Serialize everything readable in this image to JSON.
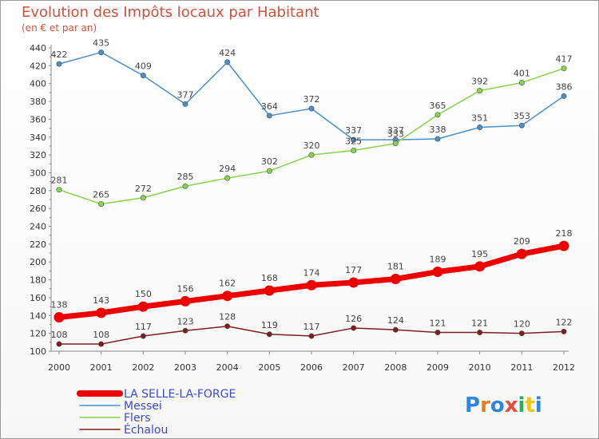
{
  "chart_data": {
    "type": "line",
    "title": "Evolution des Impôts locaux par Habitant",
    "subtitle": "(en € et par an)",
    "x": [
      "2000",
      "2001",
      "2002",
      "2003",
      "2004",
      "2005",
      "2006",
      "2007",
      "2008",
      "2009",
      "2010",
      "2011",
      "2012"
    ],
    "ylim": [
      100,
      440
    ],
    "yticks": [
      100,
      120,
      140,
      160,
      180,
      200,
      220,
      240,
      260,
      280,
      300,
      320,
      340,
      360,
      380,
      400,
      420,
      440
    ],
    "grid": false,
    "legend_position": "bottom-left",
    "series": [
      {
        "name": "LA SELLE-LA-FORGE",
        "color": "#ee0000",
        "values": [
          138,
          143,
          150,
          156,
          162,
          168,
          174,
          177,
          181,
          189,
          195,
          209,
          218
        ]
      },
      {
        "name": "Messei",
        "color": "#4b8fc6",
        "values": [
          422,
          435,
          409,
          377,
          424,
          364,
          372,
          337,
          337,
          338,
          351,
          353,
          386
        ]
      },
      {
        "name": "Flers",
        "color": "#88d24d",
        "values": [
          281,
          265,
          272,
          285,
          294,
          302,
          320,
          325,
          333,
          365,
          392,
          401,
          417
        ]
      },
      {
        "name": "Échalou",
        "color": "#7a1f1f",
        "values": [
          108,
          108,
          117,
          123,
          128,
          119,
          117,
          126,
          124,
          121,
          121,
          120,
          122
        ]
      }
    ]
  },
  "branding": {
    "logo": "Proxiti"
  }
}
